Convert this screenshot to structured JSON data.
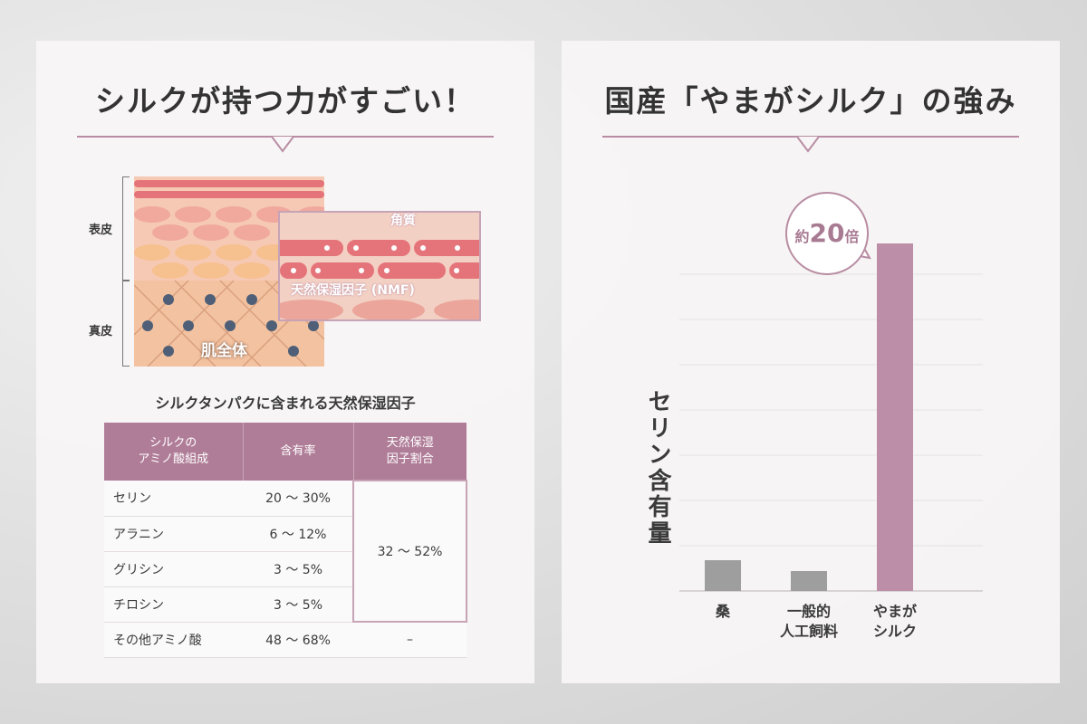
{
  "left": {
    "title": "シルクが持つ力がすごい！",
    "diagram": {
      "epidermis": "表皮",
      "dermis": "真皮",
      "whole_skin": "肌全体",
      "stratum": "角質",
      "nmf": "天然保湿因子 (NMF)"
    },
    "table_title": "シルクタンパクに含まれる天然保湿因子",
    "table": {
      "headers": [
        "シルクの\nアミノ酸組成",
        "含有率",
        "天然保湿\n因子割合"
      ],
      "rows": [
        [
          "セリン",
          "20 ～ 30%"
        ],
        [
          "アラニン",
          "6 ～ 12%"
        ],
        [
          "グリシン",
          "3 ～ 5%"
        ],
        [
          "チロシン",
          "3 ～ 5%"
        ]
      ],
      "merged_value": "32 ～ 52%",
      "last_row": [
        "その他アミノ酸",
        "48 ～ 68%",
        "–"
      ]
    }
  },
  "right": {
    "title": "国産「やまがシルク」の強み"
  },
  "chart_data": {
    "type": "bar",
    "title": "",
    "ylabel": "セリン含有量",
    "categories": [
      "桑",
      "一般的\n人工飼料",
      "やまが\nシルク"
    ],
    "values": [
      0.68,
      0.44,
      7.68
    ],
    "ylim": [
      0,
      8
    ],
    "grid": true,
    "colors": [
      "#9e9e9e",
      "#9e9e9e",
      "#bd8ea8"
    ],
    "annotation": {
      "prefix": "約",
      "number": "20",
      "suffix": "倍"
    }
  }
}
